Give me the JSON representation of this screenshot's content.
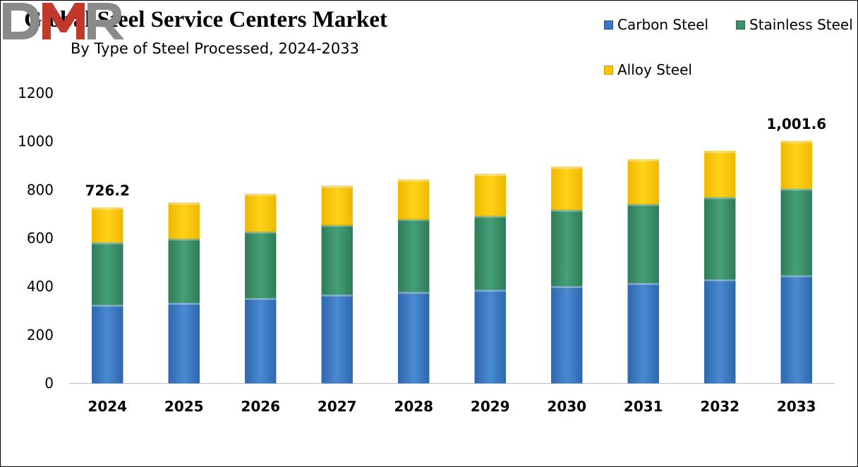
{
  "chart_data": {
    "type": "bar",
    "stacked": true,
    "title": "Global Steel Service Centers Market",
    "subtitle": "By Type of Steel Processed, 2024-2033",
    "categories": [
      "2024",
      "2025",
      "2026",
      "2027",
      "2028",
      "2029",
      "2030",
      "2031",
      "2032",
      "2033"
    ],
    "series": [
      {
        "name": "Carbon Steel",
        "color": "#3a78c3",
        "values": [
          325,
          333,
          353,
          367,
          378,
          387,
          402,
          415,
          430,
          447
        ]
      },
      {
        "name": "Stainless Steel",
        "color": "#3a9068",
        "values": [
          258,
          266,
          275,
          289,
          302,
          306,
          316,
          327,
          340,
          358
        ]
      },
      {
        "name": "Alloy Steel",
        "color": "#ffc800",
        "values": [
          143.2,
          148,
          155,
          160,
          162,
          172,
          177,
          183,
          190,
          196.6
        ]
      }
    ],
    "ylim": [
      0,
      1200
    ],
    "yticks": [
      "0",
      "200",
      "400",
      "600",
      "800",
      "1000",
      "1200"
    ],
    "grid": false,
    "legend_position": "top-right",
    "annotations": [
      {
        "category": "2024",
        "text": "726.2"
      },
      {
        "category": "2033",
        "text": "1,001.6"
      }
    ]
  },
  "logo": {
    "text": "DMR",
    "colors": [
      "#8a8a8a",
      "#c0392b"
    ]
  }
}
